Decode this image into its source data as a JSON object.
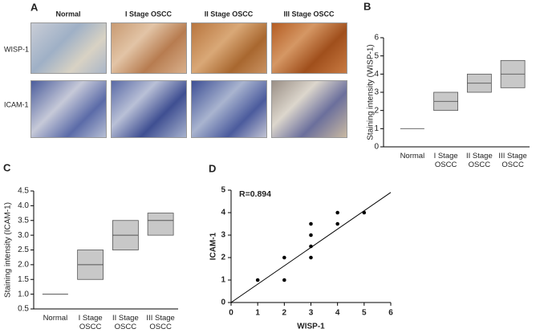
{
  "figure": {
    "panel_labels": [
      "A",
      "B",
      "C",
      "D"
    ],
    "panel_a": {
      "columns": [
        "Normal",
        "I Stage OSCC",
        "II Stage OSCC",
        "III Stage OSCC"
      ],
      "rows": [
        "WISP-1",
        "ICAM-1"
      ]
    }
  },
  "chart_data": [
    {
      "type": "box",
      "y_label": "Staining intensity (WISP-1)",
      "categories": [
        "Normal",
        "I Stage OSCC",
        "II Stage OSCC",
        "III Stage OSCC"
      ],
      "boxes": [
        {
          "q1": 1,
          "median": 1,
          "q3": 1
        },
        {
          "q1": 2,
          "median": 2.5,
          "q3": 3
        },
        {
          "q1": 3,
          "median": 3.5,
          "q3": 4
        },
        {
          "q1": 3.25,
          "median": 4,
          "q3": 4.75
        }
      ],
      "color": "#c8c8c8",
      "ylim": [
        0,
        6
      ],
      "yticks": [
        0,
        1,
        2,
        3,
        4,
        5,
        6
      ]
    },
    {
      "type": "box",
      "y_label": "Staining intensity (ICAM-1)",
      "categories": [
        "Normal",
        "I Stage OSCC",
        "II Stage OSCC",
        "III Stage OSCC"
      ],
      "boxes": [
        {
          "q1": 1,
          "median": 1,
          "q3": 1
        },
        {
          "q1": 1.5,
          "median": 2,
          "q3": 2.5
        },
        {
          "q1": 2.5,
          "median": 3,
          "q3": 3.5
        },
        {
          "q1": 3,
          "median": 3.5,
          "q3": 3.75
        }
      ],
      "color": "#c8c8c8",
      "ylim": [
        0.5,
        4.5
      ],
      "yticks": [
        0.5,
        {
          "value": 1,
          "label": "1.0"
        },
        1.5,
        {
          "value": 2,
          "label": "2.0"
        },
        2.5,
        {
          "value": 3,
          "label": "3.0"
        },
        3.5,
        {
          "value": 4,
          "label": "4.0"
        },
        4.5
      ]
    },
    {
      "type": "scatter",
      "x_label": "WISP-1",
      "y_label": "ICAM-1",
      "annotation": "R=0.894",
      "x": [
        1,
        2,
        2,
        3,
        3,
        3,
        3,
        4,
        4,
        5
      ],
      "values": [
        1,
        2,
        1,
        3.5,
        3,
        2.5,
        2,
        4,
        3.5,
        4
      ],
      "fit_line": {
        "x": [
          0,
          6
        ],
        "y": [
          0,
          4.9
        ]
      },
      "color": "#000000",
      "xlim": [
        0,
        6
      ],
      "ylim": [
        0,
        5
      ],
      "xticks": [
        0,
        1,
        2,
        3,
        4,
        5,
        6
      ],
      "yticks": [
        0,
        1,
        2,
        3,
        4,
        5
      ]
    }
  ]
}
